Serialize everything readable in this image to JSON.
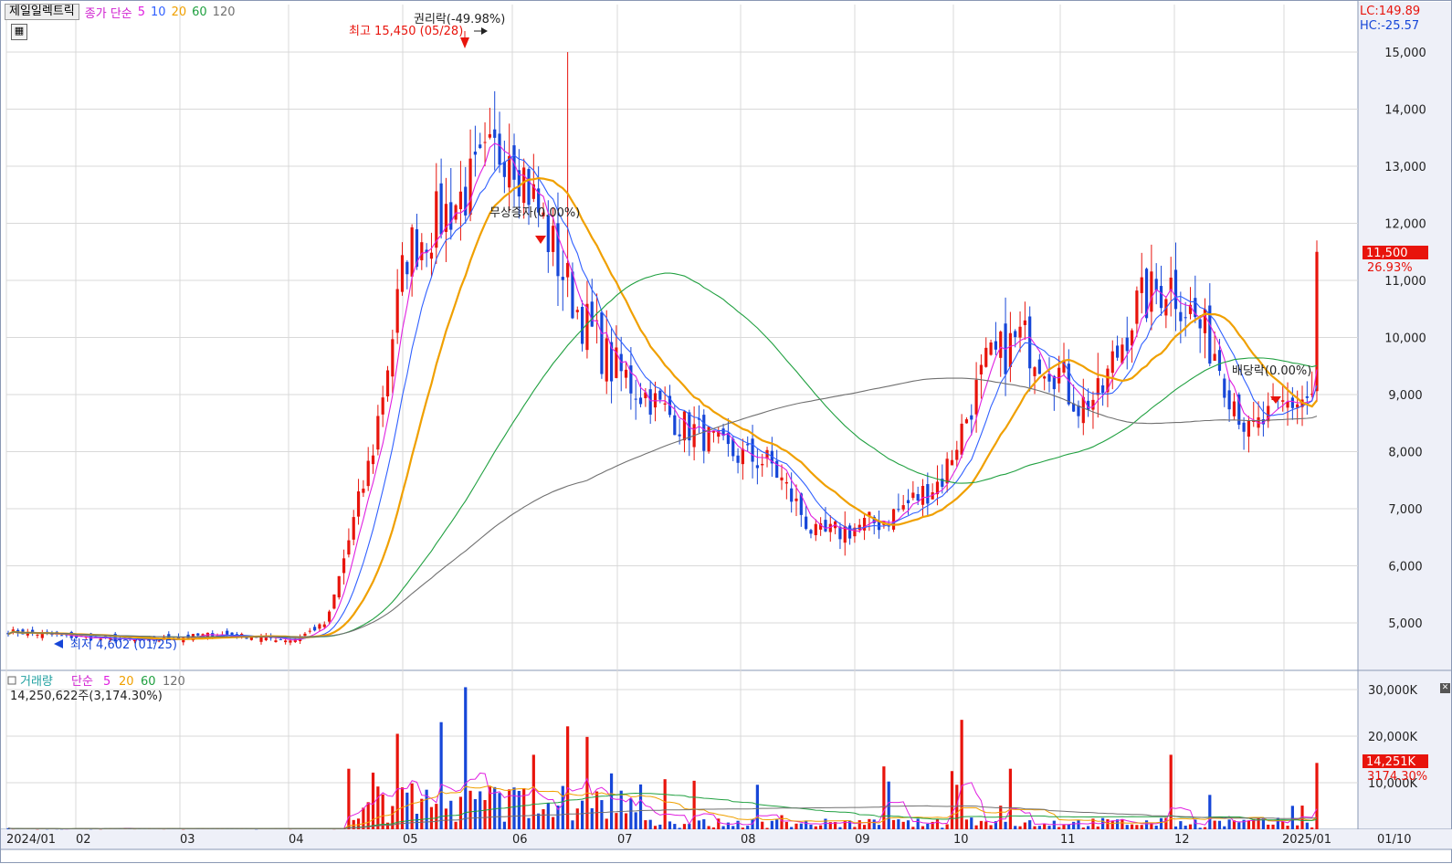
{
  "legend": {
    "stock_name": "제일일렉트릭",
    "price_label": "종가 단순",
    "ma": [
      "5",
      "10",
      "20",
      "60",
      "120"
    ],
    "ma_colors": [
      "#e020e0",
      "#3060ff",
      "#f0a000",
      "#20a040",
      "#707070"
    ]
  },
  "scale_info": {
    "lc": "LC:149.89",
    "hc": "HC:-25.57"
  },
  "annotations": {
    "rights": "권리락(-49.98%)",
    "high": "최고 15,450 (05/28)",
    "bonus": "무상증자(0.00%)",
    "dividend": "배당락(0.00%)",
    "low": "최저 4,602 (01/25)"
  },
  "price_axis": [
    "15,000",
    "14,000",
    "13,000",
    "12,000",
    "11,000",
    "10,000",
    "9,000",
    "8,000",
    "7,000",
    "6,000",
    "5,000"
  ],
  "price_tag": {
    "value": "11,500",
    "pct": "26.93%"
  },
  "volume": {
    "legend_title": "거래량",
    "legend_label": "단순",
    "ma": [
      "5",
      "20",
      "60",
      "120"
    ],
    "info": "14,250,622주(3,174.30%)",
    "axis": [
      "30,000K",
      "20,000K",
      "10,000K"
    ],
    "tag_value": "14,251K",
    "tag_pct": "3174.30%"
  },
  "date_axis": [
    "2024/01",
    "02",
    "03",
    "04",
    "05",
    "06",
    "07",
    "08",
    "09",
    "10",
    "11",
    "12",
    "2025/01",
    "01/10"
  ],
  "colors": {
    "up": "#e8140c",
    "down": "#1646d8",
    "grid": "#d9d9d9",
    "right_bg": "#eef0f8"
  },
  "chart_data": {
    "type": "candlestick",
    "series": [
      {
        "name": "종가",
        "anchors_x": [
          0,
          30,
          60,
          90,
          110,
          125,
          140,
          150,
          160,
          175,
          200,
          220,
          235,
          250,
          265,
          280,
          295,
          305,
          315,
          335,
          355,
          385,
          410,
          430,
          445,
          460,
          470,
          480,
          495,
          510,
          530,
          545,
          560,
          575
        ],
        "anchors_y": [
          4850,
          4750,
          4680,
          4800,
          4750,
          4700,
          5000,
          6500,
          8000,
          11500,
          12500,
          13500,
          12000,
          10500,
          9500,
          9000,
          8500,
          8300,
          8000,
          7800,
          6500,
          6800,
          7500,
          9500,
          10000,
          9500,
          8800,
          9000,
          10500,
          11000,
          9800,
          8300,
          8800,
          9000
        ]
      }
    ]
  }
}
